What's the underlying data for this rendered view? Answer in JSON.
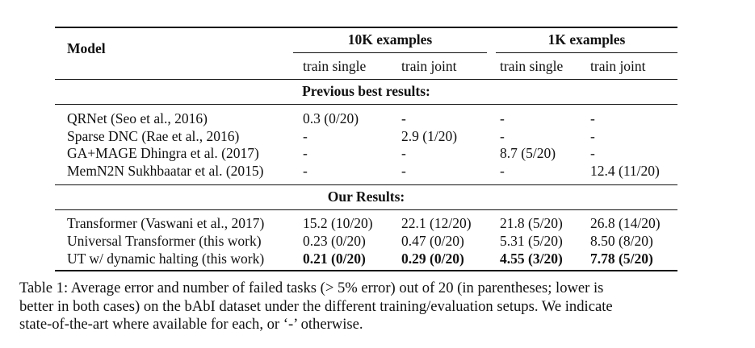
{
  "table": {
    "header": {
      "model": "Model",
      "group_10k": "10K examples",
      "group_1k": "1K examples",
      "sub": [
        "train single",
        "train joint",
        "train single",
        "train joint"
      ]
    },
    "sections": [
      {
        "title": "Previous best results:",
        "rows": [
          {
            "model": "QRNet (Seo et al., 2016)",
            "values": [
              "0.3 (0/20)",
              "-",
              "-",
              "-"
            ]
          },
          {
            "model": "Sparse DNC (Rae et al., 2016)",
            "values": [
              "-",
              "2.9 (1/20)",
              "-",
              "-"
            ]
          },
          {
            "model": "GA+MAGE Dhingra et al. (2017)",
            "values": [
              "-",
              "-",
              "8.7 (5/20)",
              "-"
            ]
          },
          {
            "model": "MemN2N Sukhbaatar et al. (2015)",
            "values": [
              "-",
              "-",
              "-",
              "12.4 (11/20)"
            ]
          }
        ]
      },
      {
        "title": "Our Results:",
        "rows": [
          {
            "model": "Transformer (Vaswani et al., 2017)",
            "values": [
              "15.2 (10/20)",
              "22.1 (12/20)",
              "21.8 (5/20)",
              "26.8 (14/20)"
            ]
          },
          {
            "model": "Universal Transformer (this work)",
            "values": [
              "0.23 (0/20)",
              "0.47 (0/20)",
              "5.31 (5/20)",
              "8.50 (8/20)"
            ]
          },
          {
            "model": "UT w/ dynamic halting (this work)",
            "values": [
              "0.21 (0/20)",
              "0.29 (0/20)",
              "4.55 (3/20)",
              "7.78 (5/20)"
            ],
            "bold_values": true
          }
        ]
      }
    ]
  },
  "caption": {
    "line1": "Table 1:  Average error and number of failed tasks (> 5% error) out of 20 (in parentheses; lower is",
    "line2": "better in both cases) on the bAbI dataset under the different training/evaluation setups. We indicate",
    "line3": "state-of-the-art where available for each, or ‘-’ otherwise."
  }
}
